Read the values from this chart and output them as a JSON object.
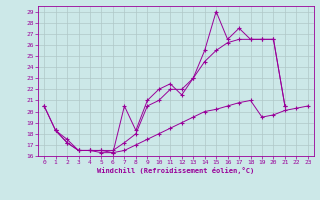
{
  "xlabel": "Windchill (Refroidissement éolien,°C)",
  "background_color": "#cce8e8",
  "grid_color": "#b0c8c8",
  "line_color": "#990099",
  "xlim": [
    -0.5,
    23.5
  ],
  "ylim": [
    16,
    29.5
  ],
  "xticks": [
    0,
    1,
    2,
    3,
    4,
    5,
    6,
    7,
    8,
    9,
    10,
    11,
    12,
    13,
    14,
    15,
    16,
    17,
    18,
    19,
    20,
    21,
    22,
    23
  ],
  "yticks": [
    16,
    17,
    18,
    19,
    20,
    21,
    22,
    23,
    24,
    25,
    26,
    27,
    28,
    29
  ],
  "series": [
    {
      "x": [
        0,
        1,
        2,
        3,
        4,
        5,
        6,
        7,
        8,
        9,
        10,
        11,
        12,
        13,
        14,
        15,
        16,
        17,
        18,
        19,
        20,
        21
      ],
      "y": [
        20.5,
        18.3,
        17.2,
        16.5,
        16.5,
        16.3,
        16.3,
        20.5,
        18.3,
        21.0,
        22.0,
        22.5,
        21.5,
        23.0,
        25.5,
        29.0,
        26.5,
        27.5,
        26.5,
        26.5,
        26.5,
        20.5
      ]
    },
    {
      "x": [
        0,
        1,
        2,
        3,
        4,
        5,
        6,
        7,
        8,
        9,
        10,
        11,
        12,
        13,
        14,
        15,
        16,
        17,
        18,
        19,
        20,
        21
      ],
      "y": [
        20.5,
        18.3,
        17.2,
        16.5,
        16.5,
        16.5,
        16.5,
        17.2,
        18.0,
        20.5,
        21.0,
        22.0,
        22.0,
        23.0,
        24.5,
        25.5,
        26.2,
        26.5,
        26.5,
        26.5,
        26.5,
        20.5
      ]
    },
    {
      "x": [
        1,
        2,
        3,
        4,
        5,
        6,
        7,
        8,
        9,
        10,
        11,
        12,
        13,
        14,
        15,
        16,
        17,
        18,
        19,
        20,
        21,
        22,
        23
      ],
      "y": [
        18.3,
        17.5,
        16.5,
        16.5,
        16.5,
        16.3,
        16.5,
        17.0,
        17.5,
        18.0,
        18.5,
        19.0,
        19.5,
        20.0,
        20.2,
        20.5,
        20.8,
        21.0,
        19.5,
        19.7,
        20.1,
        20.3,
        20.5
      ]
    }
  ]
}
